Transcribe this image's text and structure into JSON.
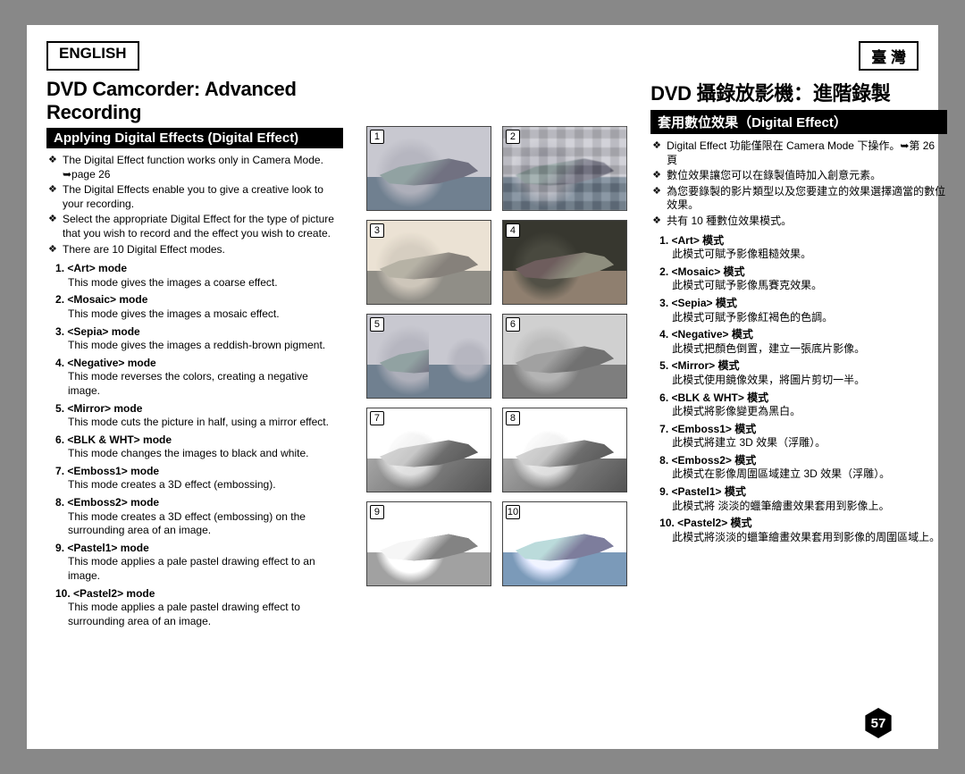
{
  "lang_left": "ENGLISH",
  "lang_right": "臺 灣",
  "page_number": "57",
  "left": {
    "title": "DVD Camcorder: Advanced Recording",
    "section": "Applying Digital Effects (Digital Effect)",
    "bullets": [
      "The Digital Effect function works only in Camera Mode. ➥page 26",
      "The Digital Effects enable you to give a creative look to your recording.",
      "Select the appropriate Digital Effect for the type of picture that you wish to record and the effect you wish to create.",
      "There are 10 Digital Effect modes."
    ],
    "modes": [
      {
        "t": "<Art> mode",
        "d": "This mode gives the images a coarse effect."
      },
      {
        "t": "<Mosaic> mode",
        "d": "This mode gives the images a mosaic effect."
      },
      {
        "t": "<Sepia> mode",
        "d": "This mode gives the images a reddish-brown pigment."
      },
      {
        "t": "<Negative> mode",
        "d": "This mode reverses the colors, creating a negative image."
      },
      {
        "t": "<Mirror> mode",
        "d": "This mode cuts the picture in half, using a mirror effect."
      },
      {
        "t": "<BLK & WHT> mode",
        "d": "This mode changes the images to black and white."
      },
      {
        "t": "<Emboss1> mode",
        "d": "This mode creates a 3D effect (embossing)."
      },
      {
        "t": "<Emboss2> mode",
        "d": "This mode creates a 3D effect (embossing) on the surrounding area of an image."
      },
      {
        "t": "<Pastel1> mode",
        "d": "This mode applies a pale pastel drawing effect to an image."
      },
      {
        "t": "<Pastel2> mode",
        "d": "This mode applies a pale pastel drawing effect to surrounding area of an image."
      }
    ]
  },
  "right": {
    "title": "DVD 攝錄放影機：進階錄製",
    "section": "套用數位效果（Digital Effect）",
    "bullets": [
      "Digital Effect 功能僅限在 Camera Mode 下操作。➥第 26 頁",
      "數位效果讓您可以在錄製值時加入創意元素。",
      "為您要錄製的影片類型以及您要建立的效果選擇適當的數位效果。",
      "共有 10 種數位效果模式。"
    ],
    "modes": [
      {
        "t": "<Art> 模式",
        "d": "此模式可賦予影像粗糙效果。"
      },
      {
        "t": "<Mosaic> 模式",
        "d": "此模式可賦予影像馬賽克效果。"
      },
      {
        "t": "<Sepia> 模式",
        "d": "此模式可賦予影像紅褐色的色調。"
      },
      {
        "t": "<Negative> 模式",
        "d": "此模式把顏色倒置，建立一張底片影像。"
      },
      {
        "t": "<Mirror> 模式",
        "d": "此模式使用鏡像效果，將圖片剪切一半。"
      },
      {
        "t": "<BLK & WHT> 模式",
        "d": "此模式將影像變更為黑白。"
      },
      {
        "t": "<Emboss1> 模式",
        "d": "此模式將建立 3D 效果（浮雕）。"
      },
      {
        "t": "<Emboss2> 模式",
        "d": "此模式在影像周圍區域建立 3D 效果（浮雕）。"
      },
      {
        "t": "<Pastel1> 模式",
        "d": "此模式將 淡淡的蠟筆繪畫效果套用到影像上。"
      },
      {
        "t": "<Pastel2> 模式",
        "d": "此模式將淡淡的蠟筆繪畫效果套用到影像的周圍區域上。"
      }
    ]
  },
  "thumbs": [
    {
      "n": "1",
      "eff": ""
    },
    {
      "n": "2",
      "eff": "eff-mosaic"
    },
    {
      "n": "3",
      "eff": "eff-sepia"
    },
    {
      "n": "4",
      "eff": "eff-negative"
    },
    {
      "n": "5",
      "eff": "eff-mirror"
    },
    {
      "n": "6",
      "eff": "eff-bw"
    },
    {
      "n": "7",
      "eff": "eff-emboss1"
    },
    {
      "n": "8",
      "eff": "eff-emboss2"
    },
    {
      "n": "9",
      "eff": "eff-pastel1"
    },
    {
      "n": "10",
      "eff": "eff-pastel2"
    }
  ]
}
